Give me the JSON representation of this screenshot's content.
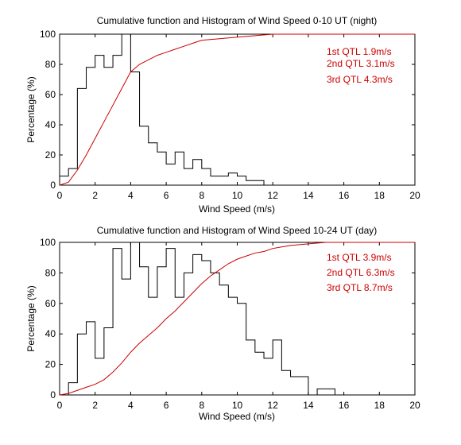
{
  "chart_data": [
    {
      "type": "line",
      "title": "Cumulative function and Histogram of Wind Speed 0-10 UT (night)",
      "xlabel": "Wind Speed (m/s)",
      "ylabel": "Percentage (%)",
      "xlim": [
        0,
        20
      ],
      "ylim": [
        0,
        100
      ],
      "xticks": [
        0,
        2,
        4,
        6,
        8,
        10,
        12,
        14,
        16,
        18,
        20
      ],
      "yticks": [
        0,
        20,
        40,
        60,
        80,
        100
      ],
      "grid": false,
      "histogram": {
        "bin_width": 0.5,
        "bin_starts": [
          0,
          0.5,
          1,
          1.5,
          2,
          2.5,
          3,
          3.5,
          4,
          4.5,
          5,
          5.5,
          6,
          6.5,
          7,
          7.5,
          8,
          8.5,
          9,
          9.5,
          10,
          10.5,
          11
        ],
        "values": [
          6,
          11,
          64,
          78,
          86,
          78,
          86,
          100,
          75,
          39,
          28,
          22,
          14,
          22,
          11,
          17,
          11,
          6,
          6,
          8,
          6,
          3,
          3
        ],
        "color": "#000000"
      },
      "cumulative": {
        "color": "#cc0000",
        "x": [
          0,
          0.5,
          1,
          1.5,
          2,
          2.5,
          3,
          3.5,
          4,
          4.5,
          5,
          5.5,
          6,
          6.5,
          7,
          7.5,
          8,
          9,
          10,
          11,
          12,
          14,
          16,
          18,
          20
        ],
        "y": [
          0,
          2,
          10,
          20,
          31,
          42,
          53,
          64,
          75,
          80,
          83,
          86,
          88,
          90,
          92,
          94,
          96,
          97,
          98,
          99,
          100,
          100,
          100,
          100,
          100
        ]
      },
      "annotations": [
        "1st QTL 1.9m/s",
        "2nd QTL 3.1m/s",
        "3rd QTL 4.3m/s"
      ]
    },
    {
      "type": "line",
      "title": "Cumulative function and Histogram of Wind Speed 10-24 UT (day)",
      "xlabel": "Wind Speed (m/s)",
      "ylabel": "Percentage (%)",
      "xlim": [
        0,
        20
      ],
      "ylim": [
        0,
        100
      ],
      "xticks": [
        0,
        2,
        4,
        6,
        8,
        10,
        12,
        14,
        16,
        18,
        20
      ],
      "yticks": [
        0,
        20,
        40,
        60,
        80,
        100
      ],
      "grid": false,
      "histogram": {
        "bin_width": 0.5,
        "bin_starts": [
          0.5,
          1,
          1.5,
          2,
          2.5,
          3,
          3.5,
          4,
          4.5,
          5,
          5.5,
          6,
          6.5,
          7,
          7.5,
          8,
          8.5,
          9,
          9.5,
          10,
          10.5,
          11,
          11.5,
          12,
          12.5,
          13,
          13.5,
          14,
          14.5,
          15
        ],
        "values": [
          8,
          40,
          48,
          24,
          44,
          96,
          76,
          100,
          84,
          64,
          84,
          96,
          64,
          80,
          92,
          88,
          80,
          72,
          64,
          60,
          36,
          28,
          24,
          36,
          16,
          12,
          12,
          0,
          4,
          4
        ],
        "color": "#000000"
      },
      "cumulative": {
        "color": "#cc0000",
        "x": [
          0,
          0.5,
          1,
          1.5,
          2,
          2.5,
          3,
          3.5,
          4,
          4.5,
          5,
          5.5,
          6,
          6.5,
          7,
          7.5,
          8,
          8.5,
          9,
          9.5,
          10,
          10.5,
          11,
          11.5,
          12,
          12.5,
          13,
          14,
          15,
          16,
          18,
          20
        ],
        "y": [
          0,
          1,
          3,
          5,
          7,
          10,
          15,
          21,
          28,
          34,
          39,
          44,
          50,
          55,
          61,
          67,
          73,
          78,
          82,
          86,
          89,
          91,
          93,
          94,
          96,
          97,
          98,
          99,
          100,
          100,
          100,
          100
        ]
      },
      "annotations": [
        "1st QTL 3.9m/s",
        "2nd QTL 6.3m/s",
        "3rd QTL 8.7m/s"
      ]
    }
  ]
}
